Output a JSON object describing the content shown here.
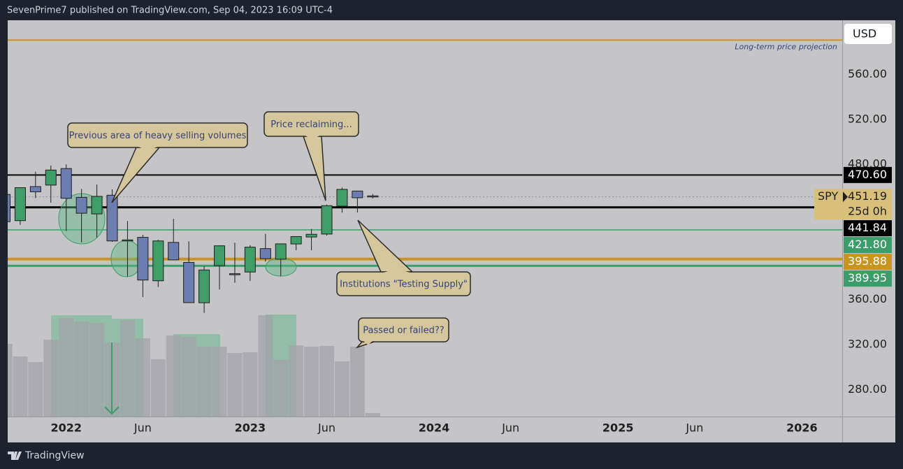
{
  "header": {
    "published": "SevenPrime7 published on TradingView.com, Sep 04, 2023 16:09 UTC-4"
  },
  "footer": {
    "brand": "TradingView"
  },
  "chart_data": {
    "type": "candlestick",
    "symbol": "SPY",
    "currency": "USD",
    "countdown": "25d 0h",
    "x": [
      "2021-09",
      "2021-10",
      "2021-11",
      "2021-12",
      "2022-01",
      "2022-02",
      "2022-03",
      "2022-04",
      "2022-05",
      "2022-06",
      "2022-07",
      "2022-08",
      "2022-09",
      "2022-10",
      "2022-11",
      "2022-12",
      "2023-01",
      "2023-02",
      "2023-03",
      "2023-04",
      "2023-05",
      "2023-06",
      "2023-07",
      "2023-08",
      "2023-09"
    ],
    "open": [
      453.3,
      430.0,
      460.3,
      461.6,
      476.3,
      450.7,
      436.0,
      452.6,
      412.3,
      415.2,
      376.6,
      410.7,
      392.9,
      357.1,
      390.1,
      382.9,
      384.4,
      405.2,
      395.8,
      409.3,
      415.5,
      418.1,
      442.9,
      456.3,
      452.0
    ],
    "high": [
      454.1,
      459.6,
      473.5,
      479.0,
      479.98,
      458.1,
      462.1,
      457.8,
      429.7,
      417.4,
      413.0,
      431.7,
      411.7,
      389.5,
      407.7,
      410.5,
      408.2,
      418.3,
      409.7,
      415.1,
      422.6,
      444.3,
      459.4,
      453.0,
      453.7
    ],
    "low": [
      428.8,
      426.4,
      450.1,
      446.0,
      420.8,
      410.6,
      415.1,
      411.2,
      380.5,
      362.2,
      371.0,
      395.0,
      357.0,
      348.1,
      368.8,
      374.8,
      376.5,
      393.6,
      380.6,
      403.8,
      403.7,
      416.8,
      437.1,
      437.3,
      449.7
    ],
    "close": [
      429.1,
      459.3,
      455.6,
      474.96,
      449.9,
      436.6,
      451.6,
      412.0,
      412.9,
      377.3,
      411.99,
      395.2,
      357.2,
      386.2,
      407.7,
      382.4,
      406.5,
      396.3,
      409.4,
      415.9,
      417.9,
      443.3,
      457.8,
      450.35,
      451.19
    ],
    "up_color": "#3f9d68",
    "down_color": "#6c7db2",
    "volume": {
      "values": [
        1773,
        1466,
        1330,
        1876,
        2404,
        2319,
        2285,
        1807,
        2353,
        1910,
        1398,
        1978,
        1944,
        1705,
        1705,
        1552,
        1569,
        2472,
        1381,
        1739,
        1705,
        1722,
        1347,
        1705,
        85
      ],
      "color": "#a4a4ab",
      "y2lim": [
        0,
        3000
      ]
    },
    "ylim": [
      256,
      608
    ],
    "yticks": [
      {
        "value": 280,
        "label": "280.00"
      },
      {
        "value": 320,
        "label": "320.00"
      },
      {
        "value": 360,
        "label": "360.00"
      },
      {
        "value": 480,
        "label": "480.00"
      },
      {
        "value": 520,
        "label": "520.00"
      },
      {
        "value": 560,
        "label": "560.00"
      }
    ],
    "xticks": [
      {
        "value": "2022-01",
        "label": "2022"
      },
      {
        "value": "2022-06",
        "label": "Jun"
      },
      {
        "value": "2023-01",
        "label": "2023"
      },
      {
        "value": "2023-06",
        "label": "Jun"
      },
      {
        "value": "2024-01",
        "label": "2024"
      },
      {
        "value": "2024-06",
        "label": "Jun"
      },
      {
        "value": "2025-01",
        "label": "2025"
      },
      {
        "value": "2025-06",
        "label": "Jun"
      },
      {
        "value": "2026-01",
        "label": "2026"
      }
    ],
    "levels": [
      {
        "value": 590.4,
        "color": "#c8951f",
        "note": "Long-term price projection"
      },
      {
        "value": 470.6,
        "label": "470.60",
        "color": "#000000"
      },
      {
        "value": 451.19,
        "label": "451.19",
        "color": "#d9c07a"
      },
      {
        "value": 441.84,
        "label": "441.84",
        "color": "#000000"
      },
      {
        "value": 421.8,
        "label": "421.80",
        "color": "#3a9d6a"
      },
      {
        "value": 395.88,
        "label": "395.88",
        "color": "#c8951f"
      },
      {
        "value": 389.95,
        "label": "389.95",
        "color": "#3a9d6a"
      }
    ],
    "annotations": [
      "Previous area of heavy selling volumes",
      "Price reclaiming...",
      "Institutions \"Testing Supply\"",
      "Passed or failed??"
    ]
  }
}
